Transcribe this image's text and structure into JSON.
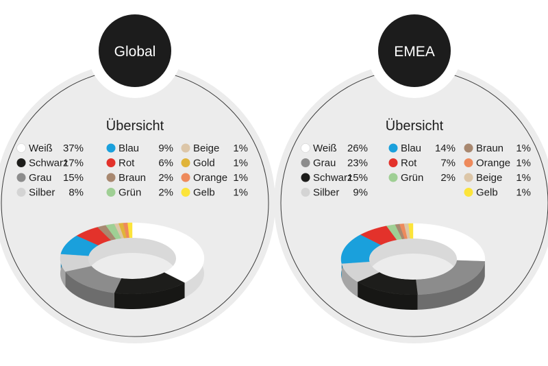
{
  "chart_data": [
    {
      "type": "pie",
      "title": "Global",
      "subtitle": "Übersicht",
      "series": [
        {
          "name": "Weiß",
          "value": 37,
          "label": "37%",
          "color": "#ffffff"
        },
        {
          "name": "Schwarz",
          "value": 17,
          "label": "17%",
          "color": "#1d1d1b"
        },
        {
          "name": "Grau",
          "value": 15,
          "label": "15%",
          "color": "#8c8c8c"
        },
        {
          "name": "Silber",
          "value": 8,
          "label": "8%",
          "color": "#d4d4d4"
        },
        {
          "name": "Blau",
          "value": 9,
          "label": "9%",
          "color": "#1aa0dc"
        },
        {
          "name": "Rot",
          "value": 6,
          "label": "6%",
          "color": "#e3322b"
        },
        {
          "name": "Braun",
          "value": 2,
          "label": "2%",
          "color": "#a88870"
        },
        {
          "name": "Grün",
          "value": 2,
          "label": "2%",
          "color": "#9fcf94"
        },
        {
          "name": "Beige",
          "value": 1,
          "label": "1%",
          "color": "#dcc6a8"
        },
        {
          "name": "Gold",
          "value": 1,
          "label": "1%",
          "color": "#e0b43a"
        },
        {
          "name": "Orange",
          "value": 1,
          "label": "1%",
          "color": "#ee8a5c"
        },
        {
          "name": "Gelb",
          "value": 1,
          "label": "1%",
          "color": "#fce43a"
        }
      ],
      "legend_columns": [
        [
          "Weiß",
          "Schwarz",
          "Grau",
          "Silber"
        ],
        [
          "Blau",
          "Rot",
          "Braun",
          "Grün"
        ],
        [
          "Beige",
          "Gold",
          "Orange",
          "Gelb"
        ]
      ],
      "slice_order": [
        "Weiß",
        "Schwarz",
        "Grau",
        "Silber",
        "Blau",
        "Rot",
        "Braun",
        "Grün",
        "Beige",
        "Gold",
        "Orange",
        "Gelb"
      ]
    },
    {
      "type": "pie",
      "title": "EMEA",
      "subtitle": "Übersicht",
      "series": [
        {
          "name": "Weiß",
          "value": 26,
          "label": "26%",
          "color": "#ffffff"
        },
        {
          "name": "Grau",
          "value": 23,
          "label": "23%",
          "color": "#8c8c8c"
        },
        {
          "name": "Schwarz",
          "value": 15,
          "label": "15%",
          "color": "#1d1d1b"
        },
        {
          "name": "Silber",
          "value": 9,
          "label": "9%",
          "color": "#d4d4d4"
        },
        {
          "name": "Blau",
          "value": 14,
          "label": "14%",
          "color": "#1aa0dc"
        },
        {
          "name": "Rot",
          "value": 7,
          "label": "7%",
          "color": "#e3322b"
        },
        {
          "name": "Grün",
          "value": 2,
          "label": "2%",
          "color": "#9fcf94"
        },
        {
          "name": "Braun",
          "value": 1,
          "label": "1%",
          "color": "#a88870"
        },
        {
          "name": "Orange",
          "value": 1,
          "label": "1%",
          "color": "#ee8a5c"
        },
        {
          "name": "Beige",
          "value": 1,
          "label": "1%",
          "color": "#dcc6a8"
        },
        {
          "name": "Gelb",
          "value": 1,
          "label": "1%",
          "color": "#fce43a"
        }
      ],
      "legend_columns": [
        [
          "Weiß",
          "Grau",
          "Schwarz",
          "Silber"
        ],
        [
          "Blau",
          "Rot",
          "Grün"
        ],
        [
          "Braun",
          "Orange",
          "Beige",
          "Gelb"
        ]
      ],
      "slice_order": [
        "Weiß",
        "Grau",
        "Schwarz",
        "Silber",
        "Blau",
        "Rot",
        "Grün",
        "Braun",
        "Orange",
        "Beige",
        "Gelb"
      ]
    }
  ]
}
